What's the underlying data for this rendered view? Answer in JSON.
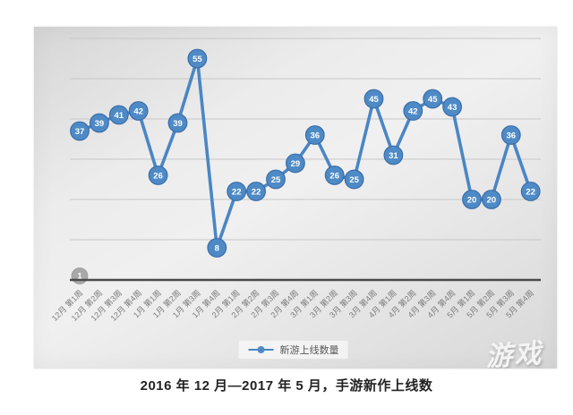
{
  "caption": {
    "text": "2016 年 12 月—2017 年 5 月，手游新作上线数"
  },
  "legend": {
    "label": "新游上线数量"
  },
  "watermark": {
    "text": "游戏"
  },
  "chart_data": {
    "type": "line",
    "title": "2016 年 12 月—2017 年 5 月，手游新作上线数",
    "xlabel": "",
    "ylabel": "",
    "ylim": [
      0,
      60
    ],
    "gridline_step": 10,
    "grid": "horizontal",
    "legend_position": "bottom",
    "categories": [
      "12月 第1周",
      "12月 第2周",
      "12月 第3周",
      "12月 第4周",
      "1月 第1周",
      "1月 第2周",
      "1月 第3周",
      "1月 第4周",
      "2月 第1周",
      "2月 第2周",
      "2月 第3周",
      "2月 第4周",
      "3月 第1周",
      "3月 第2周",
      "3月 第3周",
      "3月 第4周",
      "4月 第1周",
      "4月 第2周",
      "4月 第3周",
      "4月 第4周",
      "5月 第1周",
      "5月 第2周",
      "5月 第3周",
      "5月 第4周"
    ],
    "series": [
      {
        "name": "新游上线数量",
        "values": [
          37,
          39,
          41,
          42,
          26,
          39,
          55,
          8,
          22,
          22,
          25,
          29,
          36,
          26,
          25,
          45,
          31,
          42,
          45,
          43,
          20,
          20,
          36,
          22
        ]
      }
    ],
    "annotations": [
      {
        "label": "1",
        "category_index": 0,
        "value": 1,
        "color": "#a8a8a8"
      }
    ],
    "colors": {
      "line": "#4a86c4",
      "marker_fill": "#4e8ac6",
      "marker_stroke": "#3a6da8",
      "data_label": "#ffffff",
      "axis": "#4a4a4a",
      "gridline": "#c7c7c7",
      "tick_label": "#7c7c7c"
    }
  }
}
